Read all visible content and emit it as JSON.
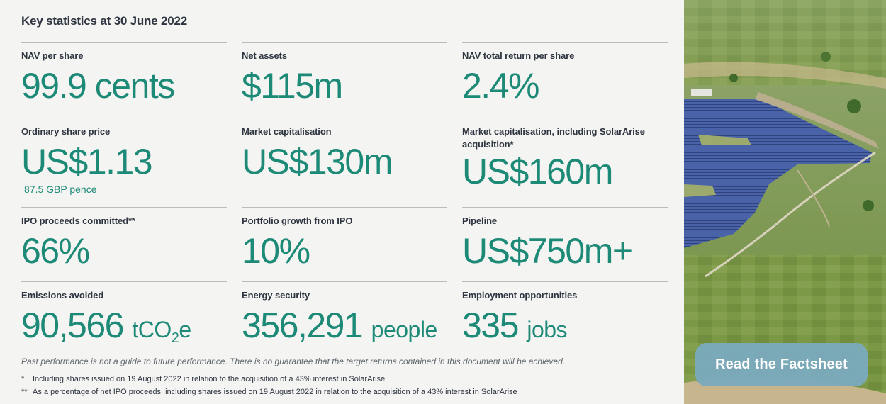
{
  "title": "Key statistics at 30 June 2022",
  "stats": [
    {
      "label": "NAV per share",
      "value": "99.9 cents"
    },
    {
      "label": "Net assets",
      "value": "$115m"
    },
    {
      "label": "NAV total return per share",
      "value": "2.4%"
    },
    {
      "label": "Ordinary share price",
      "value": "US$1.13",
      "sub_value": "87.5 GBP pence"
    },
    {
      "label": "Market capitalisation",
      "value": "US$130m"
    },
    {
      "label": "Market capitalisation, including SolarArise acquisition*",
      "value": "US$160m"
    },
    {
      "label": "IPO proceeds committed**",
      "value": "66%"
    },
    {
      "label": "Portfolio growth from IPO",
      "value": "10%"
    },
    {
      "label": "Pipeline",
      "value": "US$750m+"
    },
    {
      "label": "Emissions avoided",
      "value": "90,566",
      "unit_prefix": "tCO",
      "unit_sub": "2",
      "unit_suffix": "e"
    },
    {
      "label": "Energy security",
      "value": "356,291",
      "unit": "people"
    },
    {
      "label": "Employment opportunities",
      "value": "335",
      "unit": "jobs"
    }
  ],
  "disclaimer": "Past performance is not a guide to future performance. There is no guarantee that the target returns contained in this document will be achieved.",
  "footnotes": [
    {
      "mark": "*",
      "text": "Including shares issued on 19 August 2022 in relation to the acquisition of a 43% interest in SolarArise"
    },
    {
      "mark": "**",
      "text": "As a percentage of net IPO proceeds, including shares issued on 19 August 2022 in relation to the acquisition of a 43% interest in SolarArise"
    }
  ],
  "factsheet_button": "Read the Factsheet",
  "colors": {
    "accent": "#1d8a77",
    "button": "#7aaabe",
    "text": "#2e3540"
  }
}
